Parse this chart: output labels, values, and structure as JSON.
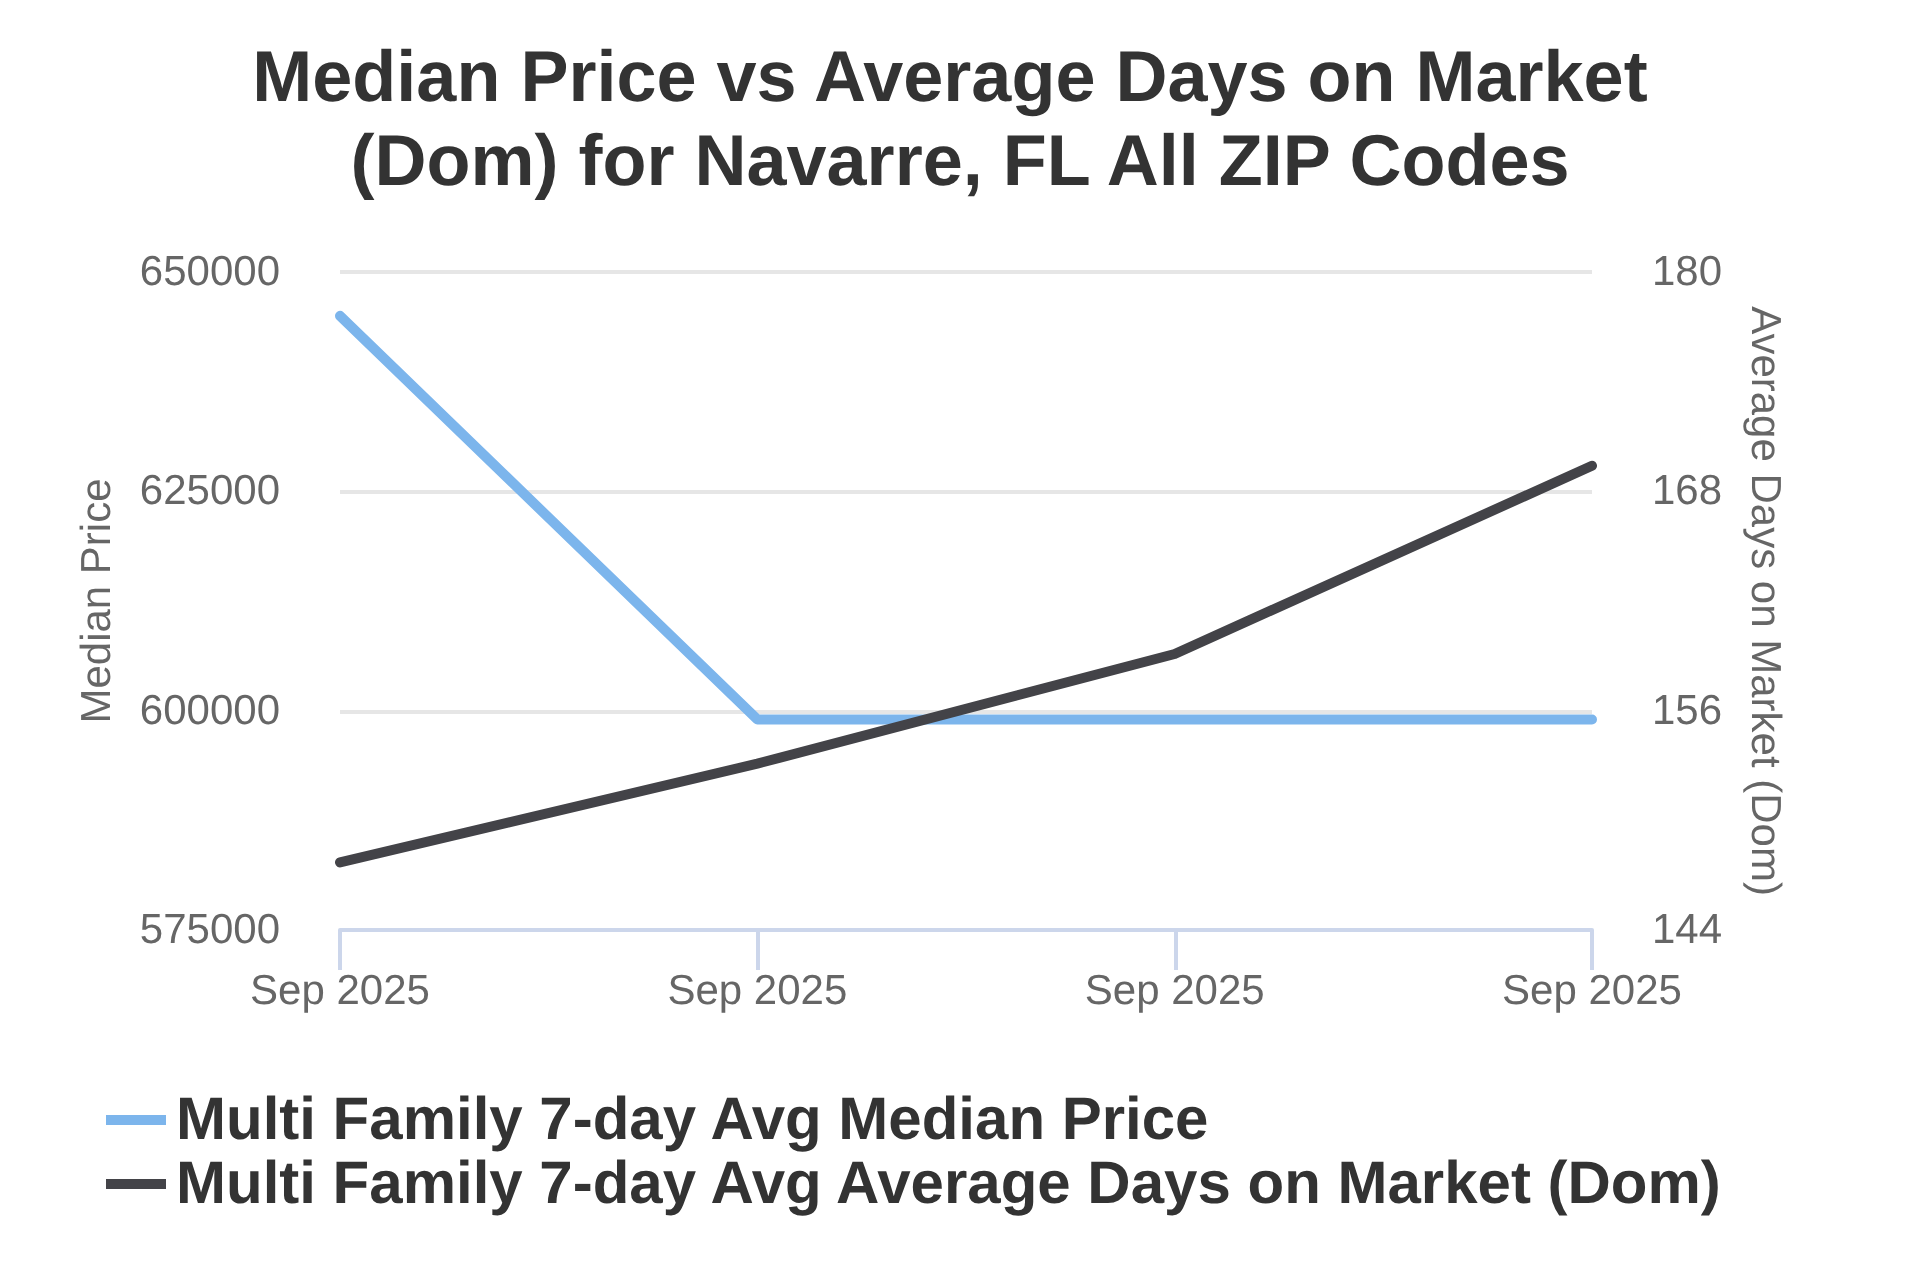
{
  "chart_data": {
    "type": "line",
    "title": "Median Price vs Average Days on Market (Dom) for Navarre, FL All ZIP Codes",
    "ylabel": "Median Price",
    "y2label": "Average Days on Market (Dom)",
    "categories": [
      "Sep 2025",
      "Sep 2025",
      "Sep 2025",
      "Sep 2025"
    ],
    "series": [
      {
        "name": "Multi Family 7-day Avg Median Price",
        "color": "#7cb5ec",
        "values": [
          645000,
          599000,
          599000,
          599000
        ]
      },
      {
        "name": "Multi Family 7-day Avg Average Days on Market (Dom)",
        "color": "#434348",
        "axis": "y2",
        "values": [
          147.7,
          153.1,
          159.1,
          169.4
        ]
      }
    ],
    "ylim": [
      575000,
      650000
    ],
    "yticks": [
      575000,
      600000,
      625000,
      650000
    ],
    "y2lim": [
      144,
      180
    ],
    "y2ticks": [
      144,
      156,
      168,
      180
    ],
    "grid": "y",
    "legend": "bottom",
    "marker": "none",
    "line_style": "solid"
  }
}
